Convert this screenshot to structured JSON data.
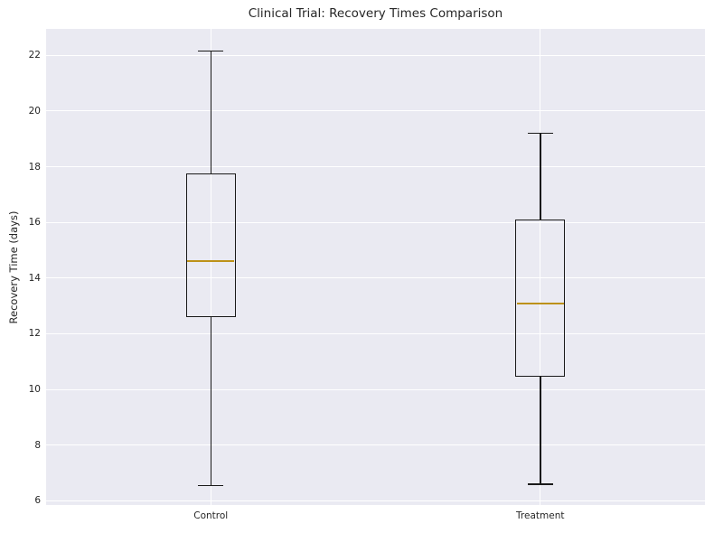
{
  "chart_data": {
    "type": "box",
    "title": "Clinical Trial: Recovery Times Comparison",
    "xlabel": "",
    "ylabel": "Recovery Time (days)",
    "categories": [
      "Control",
      "Treatment"
    ],
    "series": [
      {
        "name": "Control",
        "whisker_low": 6.55,
        "q1": 12.6,
        "median": 14.6,
        "q3": 17.75,
        "whisker_high": 22.15
      },
      {
        "name": "Treatment",
        "whisker_low": 6.6,
        "q1": 10.45,
        "median": 13.1,
        "q3": 16.1,
        "whisker_high": 19.2
      }
    ],
    "yticks": [
      6,
      8,
      10,
      12,
      14,
      16,
      18,
      20,
      22
    ],
    "ylim": [
      5.85,
      22.95
    ],
    "grid": true,
    "legend": "none",
    "colors": {
      "plot_background": "#EAEAF2",
      "grid": "#FFFFFF",
      "box_line": "#1a1a1a",
      "median_line": "#BD9118",
      "text": "#262626"
    }
  }
}
